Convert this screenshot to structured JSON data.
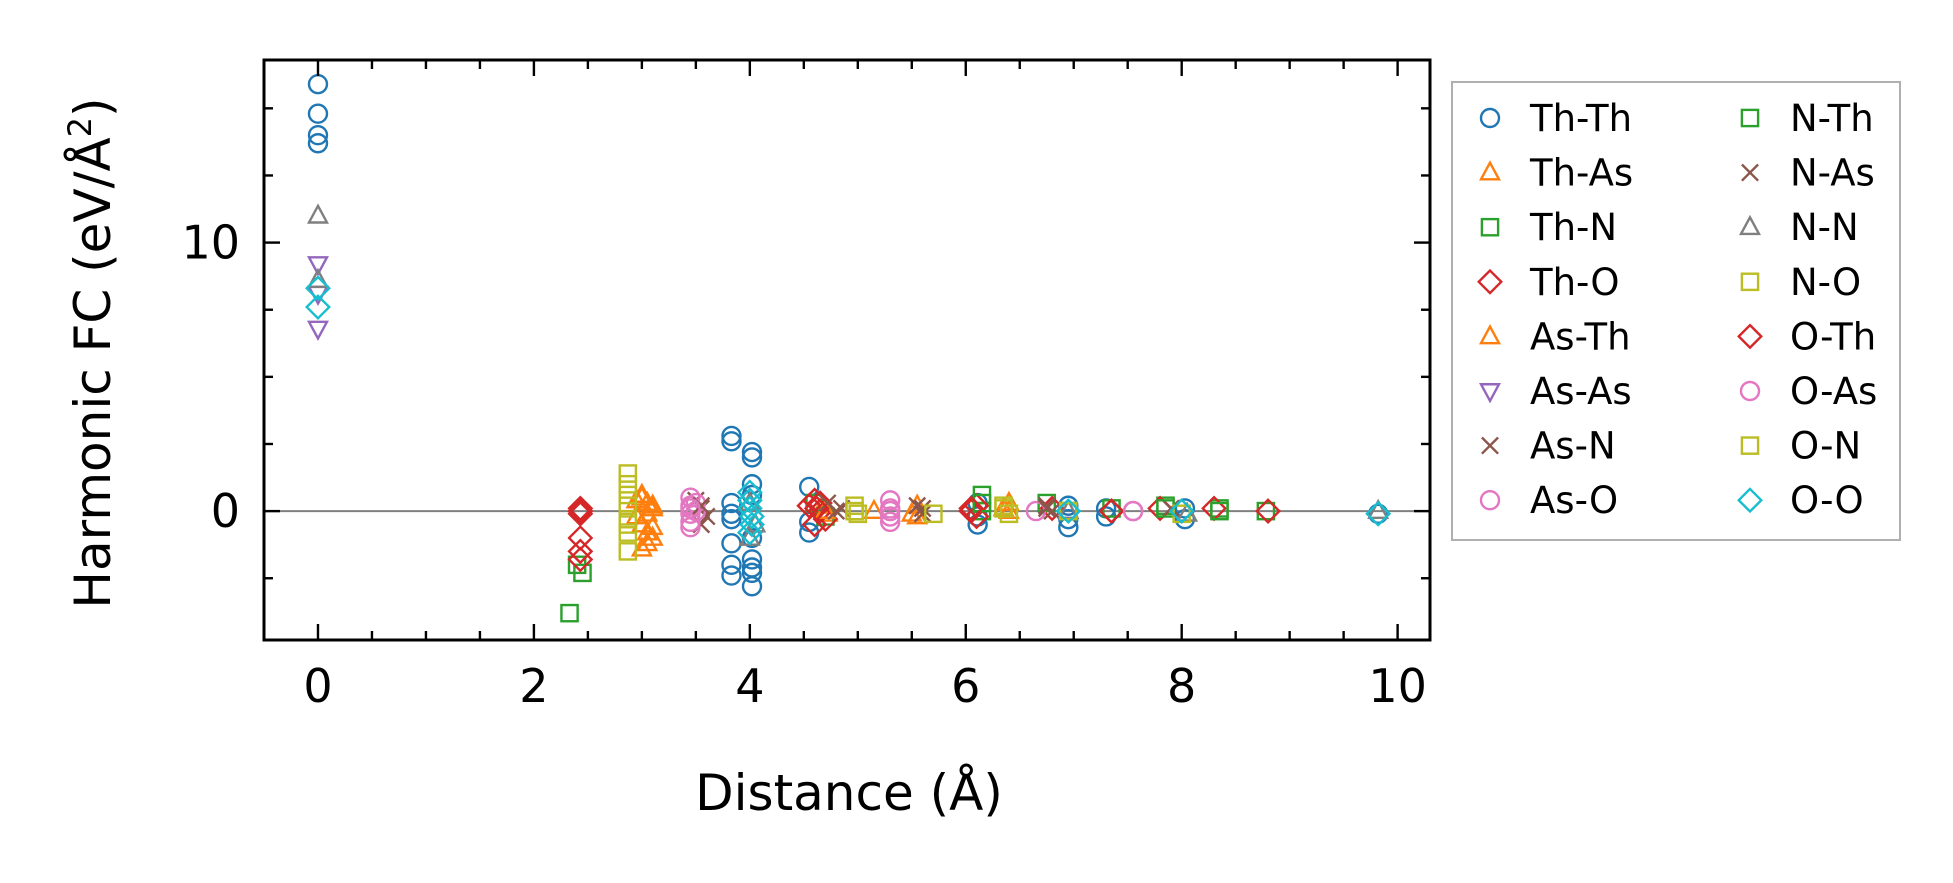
{
  "chart_data": {
    "type": "scatter",
    "title": "",
    "xlabel": "Distance (Å)",
    "ylabel_prefix": "Harmonic FC (eV/Å",
    "ylabel_sup": "2",
    "ylabel_suffix": ")",
    "xlim": [
      -0.5,
      10.3
    ],
    "ylim": [
      -4.8,
      16.8
    ],
    "xticks": [
      0,
      2,
      4,
      6,
      8,
      10
    ],
    "yticks": [
      0,
      10
    ],
    "xtick_labels": [
      "0",
      "2",
      "4",
      "6",
      "8",
      "10"
    ],
    "ytick_labels": [
      "0",
      "10"
    ],
    "legend_position": "right",
    "reference_line_y": 0,
    "series": [
      {
        "name": "Th-Th",
        "marker": "circle",
        "color": "#1f77b4",
        "x": [
          0,
          0,
          0,
          0,
          3.83,
          3.83,
          3.83,
          3.83,
          3.83,
          3.83,
          3.83,
          3.83,
          4.02,
          4.02,
          4.02,
          4.02,
          4.02,
          4.02,
          4.02,
          4.02,
          4.02,
          4.55,
          4.55,
          4.55,
          6.11,
          6.11,
          6.11,
          6.95,
          6.95,
          6.95,
          7.3,
          7.3,
          8.03,
          8.03,
          9.82
        ],
        "y": [
          15.9,
          14.8,
          14.0,
          13.7,
          2.8,
          2.6,
          0.3,
          -0.1,
          -0.3,
          -1.2,
          -2.0,
          -2.4,
          2.2,
          2.0,
          1.0,
          0.6,
          -1.0,
          -1.8,
          -2.1,
          -2.3,
          -2.8,
          0.9,
          -0.4,
          -0.8,
          0.3,
          -0.2,
          -0.5,
          0.2,
          -0.3,
          -0.6,
          0.1,
          -0.2,
          0.1,
          -0.3,
          -0.1
        ]
      },
      {
        "name": "Th-As",
        "marker": "triangle-up",
        "color": "#ff7f0e",
        "x": [
          2.95,
          3.0,
          3.05,
          3.1,
          2.95,
          3.0,
          3.05,
          3.1,
          3.0,
          3.05,
          4.68,
          4.72,
          5.15,
          5.55,
          5.55,
          6.35,
          6.4
        ],
        "y": [
          0.4,
          0.6,
          0.3,
          0.1,
          -0.2,
          -0.5,
          -0.8,
          -1.0,
          -1.4,
          -1.2,
          0.2,
          -0.1,
          0.0,
          0.2,
          -0.2,
          0.1,
          0.3
        ]
      },
      {
        "name": "Th-N",
        "marker": "square",
        "color": "#2ca02c",
        "x": [
          2.33,
          2.4,
          2.45,
          4.6,
          4.7,
          6.15,
          6.15,
          6.75,
          6.95,
          7.35,
          7.85,
          8.35,
          8.78
        ],
        "y": [
          -3.8,
          -2.0,
          -2.3,
          0.3,
          -0.2,
          0.6,
          0.0,
          0.3,
          0.0,
          0.1,
          0.2,
          0.1,
          0.0
        ]
      },
      {
        "name": "Th-O",
        "marker": "diamond",
        "color": "#d62728",
        "x": [
          2.43,
          2.43,
          2.43,
          2.43,
          2.43,
          4.55,
          4.6,
          4.65,
          4.7,
          4.6,
          4.65,
          6.05,
          6.1,
          6.1,
          6.8,
          7.35,
          7.8,
          8.3,
          8.8
        ],
        "y": [
          0.1,
          -0.1,
          -1.0,
          -1.5,
          -1.8,
          0.2,
          0.4,
          0.0,
          -0.3,
          -0.5,
          0.3,
          0.0,
          0.2,
          -0.2,
          0.1,
          0.0,
          0.1,
          0.1,
          0.0
        ]
      },
      {
        "name": "As-Th",
        "marker": "triangle-up",
        "color": "#ff7f0e",
        "x": [
          3.0,
          3.05,
          3.1,
          3.1,
          4.7,
          5.5,
          6.4
        ],
        "y": [
          0.5,
          -0.1,
          -0.6,
          0.2,
          0.0,
          -0.1,
          0.0
        ]
      },
      {
        "name": "As-As",
        "marker": "triangle-down",
        "color": "#9467bd",
        "x": [
          0,
          0,
          0
        ],
        "y": [
          9.2,
          8.1,
          6.8
        ]
      },
      {
        "name": "As-N",
        "marker": "x",
        "color": "#8c564b",
        "x": [
          3.5,
          3.55,
          3.6,
          3.55,
          4.72,
          4.85,
          5.55,
          5.6,
          6.75,
          6.8,
          7.9
        ],
        "y": [
          0.4,
          0.1,
          -0.2,
          -0.5,
          0.3,
          0.1,
          0.2,
          -0.1,
          0.2,
          0.0,
          0.1
        ]
      },
      {
        "name": "As-O",
        "marker": "circle",
        "color": "#e377c2",
        "x": [
          3.45,
          3.45,
          3.45,
          3.45,
          3.45,
          3.5,
          3.5,
          5.3,
          5.3,
          5.3,
          5.3,
          6.65,
          7.55
        ],
        "y": [
          0.5,
          0.2,
          -0.1,
          -0.4,
          -0.6,
          0.3,
          0.0,
          0.4,
          0.1,
          -0.2,
          -0.4,
          0.0,
          0.0
        ]
      },
      {
        "name": "N-Th",
        "marker": "square",
        "color": "#2ca02c",
        "x": [
          6.15,
          7.85,
          8.35
        ],
        "y": [
          0.3,
          0.1,
          0.0
        ]
      },
      {
        "name": "N-As",
        "marker": "x",
        "color": "#8c564b",
        "x": [
          3.55,
          4.8,
          5.6,
          6.75
        ],
        "y": [
          0.2,
          0.0,
          0.1,
          0.1
        ]
      },
      {
        "name": "N-N",
        "marker": "triangle-up",
        "color": "#7f7f7f",
        "x": [
          0,
          0,
          4.0,
          4.0,
          4.05,
          6.95,
          8.05,
          9.82
        ],
        "y": [
          11.0,
          8.6,
          -1.0,
          0.3,
          -0.5,
          0.0,
          -0.1,
          0.0
        ]
      },
      {
        "name": "N-O",
        "marker": "square",
        "color": "#bcbd22",
        "x": [
          2.87,
          2.87,
          2.87,
          2.87,
          2.87,
          2.87,
          2.87,
          4.97,
          5.0,
          5.7,
          6.35,
          6.4,
          6.95,
          8.0
        ],
        "y": [
          1.4,
          1.0,
          0.6,
          0.2,
          -0.3,
          -0.8,
          -1.5,
          0.2,
          -0.1,
          -0.1,
          0.2,
          -0.1,
          0.0,
          -0.1
        ]
      },
      {
        "name": "O-Th",
        "marker": "diamond",
        "color": "#d62728",
        "x": [
          2.43,
          4.62,
          6.05,
          7.35
        ],
        "y": [
          0.0,
          0.1,
          0.1,
          0.0
        ]
      },
      {
        "name": "O-As",
        "marker": "circle",
        "color": "#e377c2",
        "x": [
          3.45,
          5.3,
          7.55
        ],
        "y": [
          0.1,
          0.0,
          0.0
        ]
      },
      {
        "name": "O-N",
        "marker": "square",
        "color": "#bcbd22",
        "x": [
          2.87,
          4.97,
          6.35
        ],
        "y": [
          -0.5,
          0.0,
          0.1
        ]
      },
      {
        "name": "O-O",
        "marker": "diamond",
        "color": "#17becf",
        "x": [
          0,
          0,
          4.0,
          4.0,
          4.0,
          4.02,
          4.02,
          4.0,
          6.95,
          8.0,
          9.82
        ],
        "y": [
          8.3,
          7.6,
          0.7,
          0.4,
          0.1,
          -0.2,
          -0.5,
          -0.8,
          0.0,
          0.0,
          -0.1
        ]
      }
    ]
  }
}
